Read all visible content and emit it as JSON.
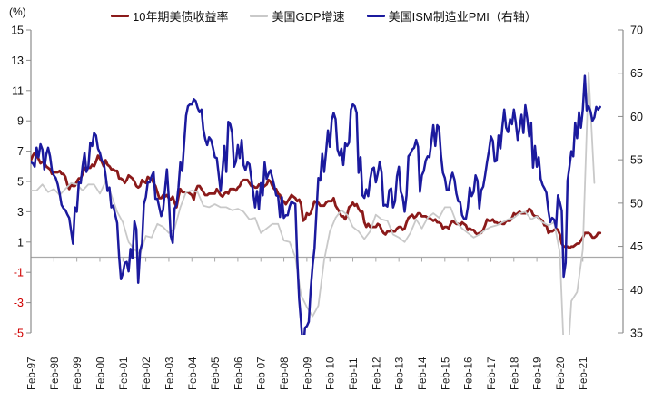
{
  "chart_data": {
    "type": "line",
    "title": "",
    "y_left": {
      "unit": "(%)",
      "min": -5,
      "max": 15,
      "step": 2,
      "ticks": [
        15,
        13,
        11,
        9,
        7,
        5,
        3,
        1,
        -1,
        -3,
        -5
      ],
      "label_color": "#111111",
      "negative_label_color": "#d00000"
    },
    "y_right": {
      "min": 35,
      "max": 70,
      "step": 5,
      "ticks": [
        70,
        65,
        60,
        55,
        50,
        45,
        40,
        35
      ],
      "label_color": "#111111"
    },
    "x_axis": {
      "labels": [
        "Feb-97",
        "Feb-98",
        "Feb-99",
        "Feb-00",
        "Feb-01",
        "Feb-02",
        "Feb-03",
        "Feb-04",
        "Feb-05",
        "Feb-06",
        "Feb-07",
        "Feb-08",
        "Feb-09",
        "Feb-10",
        "Feb-11",
        "Feb-12",
        "Feb-13",
        "Feb-14",
        "Feb-15",
        "Feb-16",
        "Feb-17",
        "Feb-18",
        "Feb-19",
        "Feb-20",
        "Feb-21"
      ],
      "zero_line_color": "#a8a8a8",
      "axis_color": "#8c8c8c"
    },
    "series": [
      {
        "name": "10年期美债收益率",
        "axis": "left",
        "color": "#8B1A1A",
        "freq": "monthly",
        "start": "1997-02",
        "values": [
          6.4,
          6.7,
          6.9,
          6.7,
          6.5,
          6.2,
          6.3,
          6.2,
          6.0,
          5.9,
          5.8,
          5.5,
          5.6,
          5.6,
          5.6,
          5.7,
          5.5,
          5.5,
          5.3,
          4.8,
          4.5,
          4.8,
          4.7,
          4.7,
          5.0,
          5.2,
          5.2,
          5.5,
          5.9,
          5.8,
          5.9,
          5.9,
          6.1,
          6.0,
          6.3,
          6.7,
          6.5,
          6.3,
          6.0,
          6.4,
          6.1,
          6.0,
          5.8,
          5.8,
          5.7,
          5.7,
          5.2,
          5.2,
          5.1,
          4.9,
          5.1,
          5.4,
          5.3,
          5.2,
          5.0,
          4.7,
          4.6,
          4.7,
          5.1,
          5.0,
          4.9,
          5.3,
          5.2,
          5.2,
          4.9,
          4.7,
          4.3,
          3.9,
          3.9,
          4.1,
          4.0,
          4.1,
          3.9,
          3.8,
          4.0,
          3.6,
          3.3,
          4.0,
          4.5,
          4.3,
          4.3,
          4.3,
          4.3,
          4.2,
          4.1,
          3.8,
          4.4,
          4.7,
          4.7,
          4.5,
          4.3,
          4.1,
          4.1,
          4.2,
          4.2,
          4.2,
          4.2,
          4.5,
          4.3,
          4.1,
          4.0,
          4.2,
          4.3,
          4.2,
          4.5,
          4.5,
          4.5,
          4.4,
          4.6,
          4.7,
          5.0,
          5.1,
          5.1,
          5.1,
          4.9,
          4.7,
          4.7,
          4.6,
          4.6,
          4.8,
          4.7,
          4.6,
          4.7,
          4.8,
          5.1,
          5.0,
          4.7,
          4.5,
          4.5,
          4.2,
          4.1,
          3.7,
          3.7,
          3.5,
          3.7,
          3.9,
          4.1,
          4.0,
          3.9,
          3.7,
          3.8,
          3.5,
          2.4,
          2.5,
          2.9,
          2.8,
          2.9,
          3.3,
          3.7,
          3.6,
          3.6,
          3.4,
          3.4,
          3.4,
          3.6,
          3.7,
          3.7,
          3.7,
          3.9,
          3.4,
          3.2,
          3.0,
          2.7,
          2.7,
          2.5,
          2.8,
          3.3,
          3.4,
          3.6,
          3.4,
          3.5,
          3.2,
          3.0,
          3.0,
          2.3,
          2.0,
          2.2,
          2.0,
          2.0,
          2.0,
          2.0,
          2.2,
          2.1,
          1.8,
          1.6,
          1.5,
          1.7,
          1.7,
          1.8,
          1.7,
          1.7,
          1.9,
          2.0,
          2.0,
          1.8,
          1.9,
          2.3,
          2.6,
          2.7,
          2.8,
          2.6,
          2.7,
          2.9,
          2.9,
          2.7,
          2.7,
          2.7,
          2.6,
          2.6,
          2.5,
          2.4,
          2.5,
          2.3,
          2.3,
          2.2,
          1.9,
          2.0,
          2.0,
          1.9,
          2.2,
          2.4,
          2.3,
          2.2,
          2.2,
          2.1,
          2.3,
          2.2,
          2.1,
          1.8,
          1.9,
          1.8,
          1.8,
          1.6,
          1.5,
          1.6,
          1.6,
          1.8,
          2.1,
          2.5,
          2.4,
          2.4,
          2.5,
          2.3,
          2.3,
          2.2,
          2.3,
          2.2,
          2.2,
          2.4,
          2.4,
          2.4,
          2.6,
          2.9,
          2.8,
          2.9,
          3.0,
          2.9,
          2.9,
          2.9,
          3.0,
          3.2,
          3.1,
          2.8,
          2.7,
          2.7,
          2.6,
          2.5,
          2.4,
          2.1,
          2.1,
          1.6,
          1.7,
          1.7,
          1.8,
          1.9,
          1.8,
          1.5,
          0.9,
          0.7,
          0.7,
          0.7,
          0.6,
          0.7,
          0.7,
          0.8,
          0.9,
          0.9,
          1.1,
          1.3,
          1.6,
          1.6,
          1.6,
          1.5,
          1.3,
          1.3,
          1.4,
          1.6,
          1.6
        ]
      },
      {
        "name": "美国GDP增速",
        "axis": "left",
        "color": "#C9C9C9",
        "freq": "quarterly",
        "start": "1997-Q1",
        "values": [
          4.4,
          4.4,
          4.8,
          4.3,
          4.5,
          4.1,
          4.5,
          4.9,
          4.8,
          4.4,
          4.8,
          4.8,
          4.2,
          5.0,
          4.1,
          3.0,
          2.3,
          1.0,
          0.5,
          0.2,
          1.4,
          1.3,
          2.2,
          2.0,
          1.6,
          1.9,
          3.3,
          4.3,
          4.4,
          4.3,
          3.4,
          3.3,
          3.5,
          3.3,
          3.3,
          3.1,
          3.2,
          3.0,
          2.5,
          2.6,
          1.6,
          1.9,
          2.2,
          2.2,
          1.1,
          1.0,
          0.0,
          -2.5,
          -3.3,
          -3.9,
          -3.2,
          -0.2,
          1.7,
          2.6,
          3.1,
          2.8,
          2.0,
          1.7,
          1.2,
          1.7,
          2.8,
          2.5,
          2.4,
          1.5,
          1.3,
          1.0,
          1.6,
          2.5,
          1.9,
          2.6,
          2.9,
          2.6,
          3.3,
          3.3,
          2.3,
          1.9,
          1.6,
          1.3,
          1.5,
          1.8,
          2.0,
          2.1,
          2.3,
          2.5,
          2.6,
          2.9,
          3.0,
          2.5,
          2.7,
          2.3,
          2.1,
          2.3,
          0.3,
          -9.1,
          -2.9,
          -2.3,
          0.5,
          12.2,
          4.9
        ]
      },
      {
        "name": "美国ISM制造业PMI（右轴）",
        "axis": "right",
        "color": "#1B1A9E",
        "freq": "monthly",
        "start": "1997-02",
        "values": [
          54.7,
          54.6,
          54.2,
          56.4,
          55.3,
          56.8,
          56.2,
          53.9,
          55.6,
          56.4,
          55.4,
          53.8,
          53.2,
          52.9,
          52.2,
          51.1,
          49.8,
          49.4,
          49.2,
          48.7,
          48.3,
          46.8,
          45.3,
          49.5,
          49.0,
          52.4,
          52.3,
          54.3,
          55.8,
          53.6,
          54.2,
          57.0,
          56.6,
          58.1,
          57.8,
          56.3,
          55.8,
          54.9,
          54.7,
          53.2,
          51.4,
          51.8,
          49.5,
          49.7,
          48.7,
          47.7,
          43.9,
          41.2,
          41.9,
          43.1,
          43.2,
          42.1,
          44.7,
          43.6,
          47.9,
          47.0,
          40.8,
          44.5,
          45.3,
          49.9,
          50.7,
          52.4,
          52.4,
          53.1,
          53.6,
          50.5,
          50.5,
          49.5,
          48.5,
          49.2,
          51.6,
          53.9,
          50.5,
          46.2,
          45.4,
          49.4,
          49.8,
          51.8,
          54.7,
          53.7,
          57.0,
          60.1,
          61.2,
          61.4,
          61.4,
          62.0,
          61.8,
          61.0,
          60.5,
          60.8,
          58.5,
          57.4,
          56.7,
          57.6,
          57.3,
          56.4,
          55.3,
          55.2,
          53.3,
          51.4,
          53.8,
          56.6,
          53.6,
          59.4,
          59.1,
          58.1,
          54.2,
          54.8,
          56.7,
          55.2,
          57.3,
          54.4,
          53.8,
          54.7,
          54.5,
          52.9,
          51.2,
          49.5,
          51.4,
          49.3,
          52.3,
          50.9,
          54.7,
          52.8,
          53.4,
          53.8,
          52.9,
          52.0,
          50.9,
          50.8,
          48.4,
          50.7,
          48.3,
          48.6,
          48.6,
          49.6,
          50.2,
          50.0,
          49.9,
          43.5,
          38.9,
          36.2,
          32.9,
          35.6,
          35.8,
          36.3,
          40.1,
          42.8,
          44.8,
          48.9,
          52.9,
          52.6,
          55.7,
          53.6,
          55.9,
          58.4,
          56.5,
          59.6,
          60.4,
          59.7,
          56.2,
          55.5,
          56.3,
          54.4,
          56.9,
          56.6,
          57.0,
          60.8,
          61.4,
          61.2,
          60.4,
          53.5,
          55.3,
          50.9,
          50.6,
          51.6,
          50.8,
          52.7,
          53.9,
          54.1,
          52.4,
          53.4,
          54.8,
          53.5,
          49.7,
          49.8,
          49.6,
          51.5,
          51.7,
          49.5,
          50.2,
          53.1,
          54.2,
          51.3,
          50.7,
          49.0,
          50.9,
          55.4,
          55.7,
          56.2,
          56.4,
          57.3,
          56.5,
          51.3,
          53.2,
          53.7,
          54.9,
          55.4,
          55.3,
          57.1,
          59.0,
          56.6,
          59.0,
          58.7,
          55.5,
          53.5,
          52.9,
          51.5,
          51.5,
          52.8,
          53.5,
          52.7,
          51.1,
          50.2,
          50.1,
          48.6,
          48.2,
          48.2,
          49.5,
          51.8,
          50.8,
          51.3,
          53.2,
          52.6,
          49.4,
          51.5,
          51.9,
          53.2,
          54.7,
          56.0,
          57.7,
          57.2,
          54.8,
          54.9,
          57.8,
          56.3,
          58.8,
          60.8,
          58.7,
          58.2,
          59.7,
          59.1,
          60.8,
          59.3,
          57.3,
          58.7,
          60.2,
          58.1,
          61.3,
          59.8,
          57.7,
          59.3,
          54.1,
          56.6,
          54.2,
          55.3,
          52.8,
          52.1,
          51.7,
          51.2,
          49.1,
          47.8,
          48.3,
          48.1,
          47.2,
          50.9,
          50.1,
          49.1,
          41.5,
          43.1,
          52.6,
          54.2,
          56.0,
          55.4,
          59.3,
          57.5,
          60.5,
          58.7,
          60.8,
          64.7,
          60.7,
          61.2,
          60.6,
          59.5,
          59.9,
          61.1,
          60.8,
          61.1
        ]
      }
    ]
  }
}
